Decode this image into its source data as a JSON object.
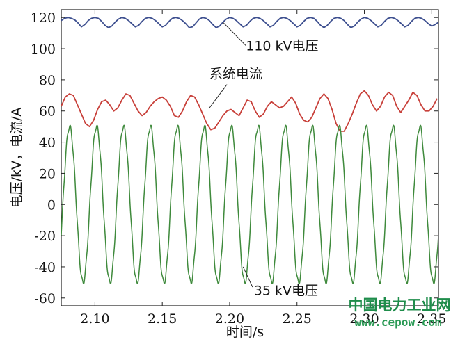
{
  "chart_data": {
    "type": "line",
    "title": "",
    "xlabel": "时间/s",
    "ylabel": "电压/kV，电流/A",
    "xlim": [
      2.075,
      2.355
    ],
    "ylim": [
      -65,
      125
    ],
    "x_ticks": [
      2.1,
      2.15,
      2.2,
      2.25,
      2.3,
      2.35
    ],
    "x_tick_labels": [
      "2.10",
      "2.15",
      "2.20",
      "2.25",
      "2.30",
      "2.35"
    ],
    "y_ticks": [
      120,
      100,
      80,
      60,
      40,
      20,
      0,
      -20,
      -40,
      -60
    ],
    "y_tick_labels": [
      "120",
      "100",
      "80",
      "60",
      "40",
      "20",
      "0",
      "-20",
      "-40",
      "-60"
    ],
    "grid": false,
    "series": [
      {
        "name": "110 kV电压",
        "color": "#3d4f8f",
        "x": [
          2.075,
          2.0775,
          2.08,
          2.0825,
          2.085,
          2.0875,
          2.09,
          2.0925,
          2.095,
          2.0975,
          2.1,
          2.1025,
          2.105,
          2.1075,
          2.11,
          2.1125,
          2.115,
          2.1175,
          2.12,
          2.1225,
          2.125,
          2.1275,
          2.13,
          2.1325,
          2.135,
          2.1375,
          2.14,
          2.1425,
          2.145,
          2.1475,
          2.15,
          2.1525,
          2.155,
          2.1575,
          2.16,
          2.1625,
          2.165,
          2.1675,
          2.17,
          2.1725,
          2.175,
          2.1775,
          2.18,
          2.1825,
          2.185,
          2.1875,
          2.19,
          2.1925,
          2.195,
          2.1975,
          2.2,
          2.2025,
          2.205,
          2.2075,
          2.21,
          2.2125,
          2.215,
          2.2175,
          2.22,
          2.2225,
          2.225,
          2.2275,
          2.23,
          2.2325,
          2.235,
          2.2375,
          2.24,
          2.2425,
          2.245,
          2.2475,
          2.25,
          2.2525,
          2.255,
          2.2575,
          2.26,
          2.2625,
          2.265,
          2.2675,
          2.27,
          2.2725,
          2.275,
          2.2775,
          2.28,
          2.2825,
          2.285,
          2.2875,
          2.29,
          2.2925,
          2.295,
          2.2975,
          2.3,
          2.3025,
          2.305,
          2.3075,
          2.31,
          2.3125,
          2.315,
          2.3175,
          2.32,
          2.3225,
          2.325,
          2.3275,
          2.33,
          2.3325,
          2.335,
          2.3375,
          2.34,
          2.3425,
          2.345,
          2.3475,
          2.35,
          2.3525,
          2.355
        ],
        "y": [
          118,
          119.5,
          120,
          119.5,
          118.5,
          116.5,
          114,
          115.5,
          118,
          119.5,
          120,
          119.5,
          117.5,
          115,
          113.5,
          114.5,
          117,
          119,
          120,
          119.5,
          118,
          116,
          114,
          115,
          117.5,
          119.5,
          120,
          119.5,
          118,
          116,
          114,
          115,
          117.5,
          119.5,
          120,
          119.5,
          118,
          116,
          113.5,
          114,
          116.5,
          119,
          120,
          119.5,
          118,
          115.5,
          113.5,
          114.5,
          117,
          119,
          120,
          119.5,
          118,
          116,
          114,
          115,
          117.5,
          119.5,
          120,
          119.5,
          118,
          116,
          114,
          115,
          117.5,
          119.5,
          120,
          119.5,
          118,
          116,
          114,
          115,
          117.5,
          119.5,
          120,
          119.5,
          117.5,
          115,
          113.5,
          115,
          117.5,
          119.5,
          120,
          119.5,
          118,
          115.5,
          113.5,
          114.5,
          117,
          119,
          120,
          119.5,
          118,
          116,
          114,
          115,
          117.5,
          119.5,
          120,
          119.5,
          118,
          116,
          114,
          115,
          117.5,
          119.5,
          120,
          119.5,
          118,
          116,
          114.5,
          115.5,
          117
        ]
      },
      {
        "name": "系统电流",
        "color": "#c8403a",
        "x": [
          2.075,
          2.078,
          2.081,
          2.084,
          2.087,
          2.09,
          2.093,
          2.096,
          2.099,
          2.102,
          2.105,
          2.108,
          2.111,
          2.114,
          2.117,
          2.12,
          2.123,
          2.126,
          2.129,
          2.132,
          2.135,
          2.138,
          2.141,
          2.144,
          2.147,
          2.15,
          2.153,
          2.156,
          2.159,
          2.162,
          2.165,
          2.168,
          2.171,
          2.174,
          2.177,
          2.18,
          2.183,
          2.186,
          2.189,
          2.192,
          2.195,
          2.198,
          2.201,
          2.204,
          2.207,
          2.21,
          2.213,
          2.216,
          2.219,
          2.222,
          2.225,
          2.228,
          2.231,
          2.234,
          2.237,
          2.24,
          2.243,
          2.246,
          2.249,
          2.252,
          2.255,
          2.258,
          2.261,
          2.264,
          2.267,
          2.27,
          2.273,
          2.276,
          2.279,
          2.282,
          2.285,
          2.288,
          2.291,
          2.294,
          2.297,
          2.3,
          2.303,
          2.306,
          2.309,
          2.312,
          2.315,
          2.318,
          2.321,
          2.324,
          2.327,
          2.33,
          2.333,
          2.336,
          2.339,
          2.342,
          2.345,
          2.348,
          2.351,
          2.354
        ],
        "y": [
          63,
          69,
          71,
          70,
          64,
          58,
          52,
          50,
          54,
          61,
          66,
          67,
          64,
          60,
          62,
          67,
          71,
          70,
          65,
          60,
          57,
          59,
          63,
          66,
          68,
          69,
          67,
          63,
          57,
          56,
          60,
          66,
          70,
          69,
          64,
          58,
          52,
          48,
          49,
          53,
          57,
          60,
          61,
          59,
          57,
          62,
          67,
          66,
          60,
          56,
          58,
          63,
          66,
          64,
          62,
          63,
          66,
          69,
          65,
          58,
          54,
          53,
          56,
          62,
          68,
          71,
          68,
          61,
          52,
          47,
          47,
          52,
          58,
          65,
          71,
          73,
          70,
          64,
          60,
          63,
          69,
          72,
          70,
          63,
          59,
          63,
          67,
          72,
          70,
          64,
          60,
          60,
          63,
          68
        ]
      },
      {
        "name": "35 kV电压",
        "color": "#3f8a3c",
        "amplitude": 50,
        "period_s": 0.02,
        "peak_at_s": 2.0812
      }
    ],
    "annotations": [
      {
        "text": "110 kV电压",
        "x": 2.212,
        "y": 99
      },
      {
        "text": "系统电流",
        "x": 2.185,
        "y": 81
      },
      {
        "text": "35 kV电压",
        "x": 2.218,
        "y": -58
      }
    ]
  },
  "watermark": {
    "line1": "中国电力工业网",
    "line2": "www.cepow.com"
  }
}
